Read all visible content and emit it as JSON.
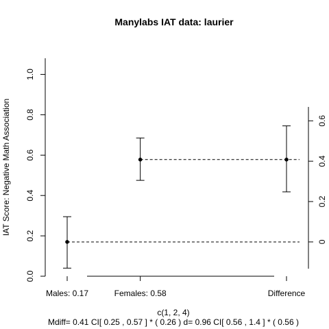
{
  "chart_data": {
    "type": "scatter",
    "title": "Manylabs IAT data:  laurier",
    "xlabel": "c(1, 2, 4)",
    "ylabel": "IAT Score: Negative Math Association",
    "subtitle": "Mdiff= 0.41  CI[ 0.25 , 0.57 ] *  ( 0.26 )   d= 0.96 CI[ 0.56 ,  1.4 ] *  ( 0.56 )",
    "xlim": [
      0.7,
      4.3
    ],
    "ylim": [
      0,
      1.08
    ],
    "left_axis_ticks": [
      "0.0",
      "0.2",
      "0.4",
      "0.6",
      "0.8",
      "1.0"
    ],
    "right_axis_ticks": [
      "0",
      "0.2",
      "0.4",
      "0.6"
    ],
    "right_axis_offset": 0.17,
    "x_tick_labels": [
      "Males:  0.17",
      "Females:  0.58",
      "Difference"
    ],
    "points": [
      {
        "x": 1,
        "y": 0.17,
        "lower": 0.04,
        "upper": 0.295
      },
      {
        "x": 2,
        "y": 0.578,
        "lower": 0.475,
        "upper": 0.685
      },
      {
        "x": 4,
        "y": 0.578,
        "lower": 0.418,
        "upper": 0.745
      }
    ],
    "reference_lines": [
      {
        "from_x": 1,
        "y": 0.17
      },
      {
        "from_x": 2,
        "y": 0.578
      }
    ]
  }
}
